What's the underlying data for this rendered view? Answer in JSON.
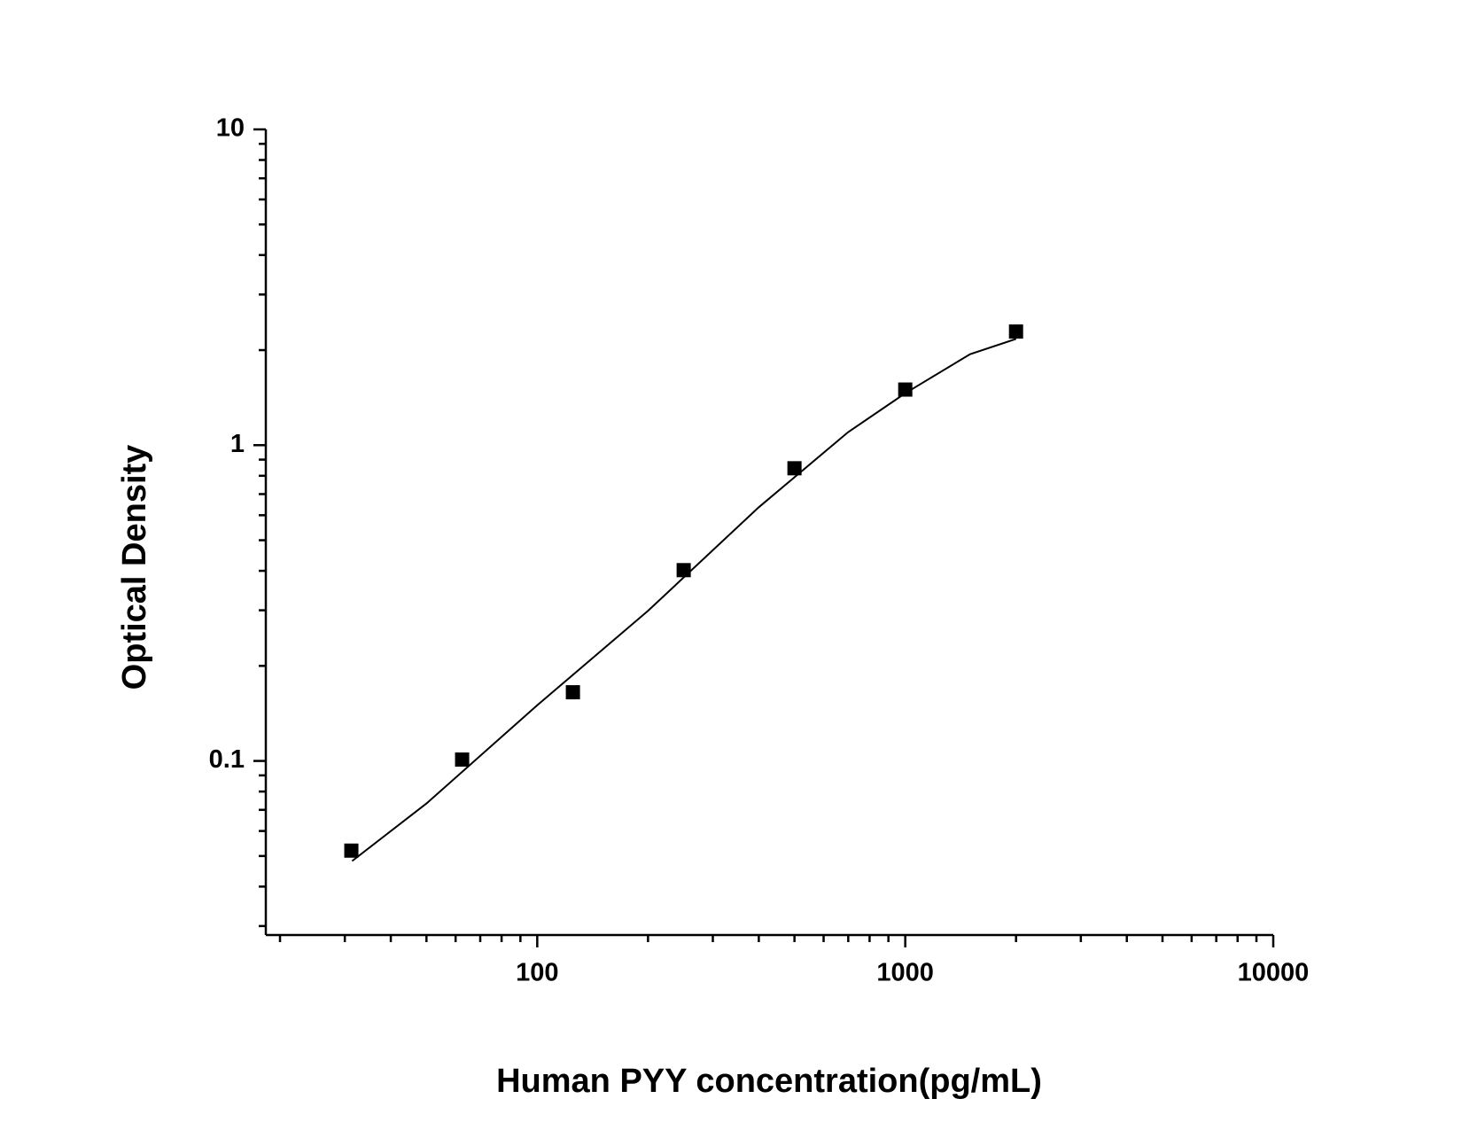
{
  "chart_data": {
    "type": "scatter",
    "xlabel": "Human PYY concentration(pg/mL)",
    "ylabel": "Optical Density",
    "x": [
      31.25,
      62.5,
      125,
      250,
      500,
      1000,
      2000
    ],
    "values": [
      0.052,
      0.101,
      0.165,
      0.402,
      0.845,
      1.5,
      2.29
    ],
    "color": "#000000",
    "curve": {
      "x": [
        31.4,
        50,
        100,
        200,
        400,
        700,
        1000,
        1500,
        2000
      ],
      "values": [
        0.0482,
        0.0733,
        0.15,
        0.299,
        0.636,
        1.1,
        1.46,
        1.94,
        2.17
      ]
    },
    "xscale": "log",
    "yscale": "log",
    "xlim": [
      18.3,
      10000
    ],
    "ylim": [
      0.0281,
      10
    ],
    "xticks": [
      100,
      1000,
      10000
    ],
    "yticks": [
      0.1,
      1,
      10
    ],
    "xminorticks": [
      20,
      30,
      40,
      50,
      60,
      70,
      80,
      90,
      200,
      300,
      400,
      500,
      600,
      700,
      800,
      900,
      2000,
      3000,
      4000,
      5000,
      6000,
      7000,
      8000,
      9000
    ],
    "yminorticks": [
      0.03,
      0.04,
      0.05,
      0.06,
      0.07,
      0.08,
      0.09,
      0.2,
      0.3,
      0.4,
      0.5,
      0.6,
      0.7,
      0.8,
      0.9,
      2,
      3,
      4,
      5,
      6,
      7,
      8,
      9
    ],
    "grid": false
  }
}
